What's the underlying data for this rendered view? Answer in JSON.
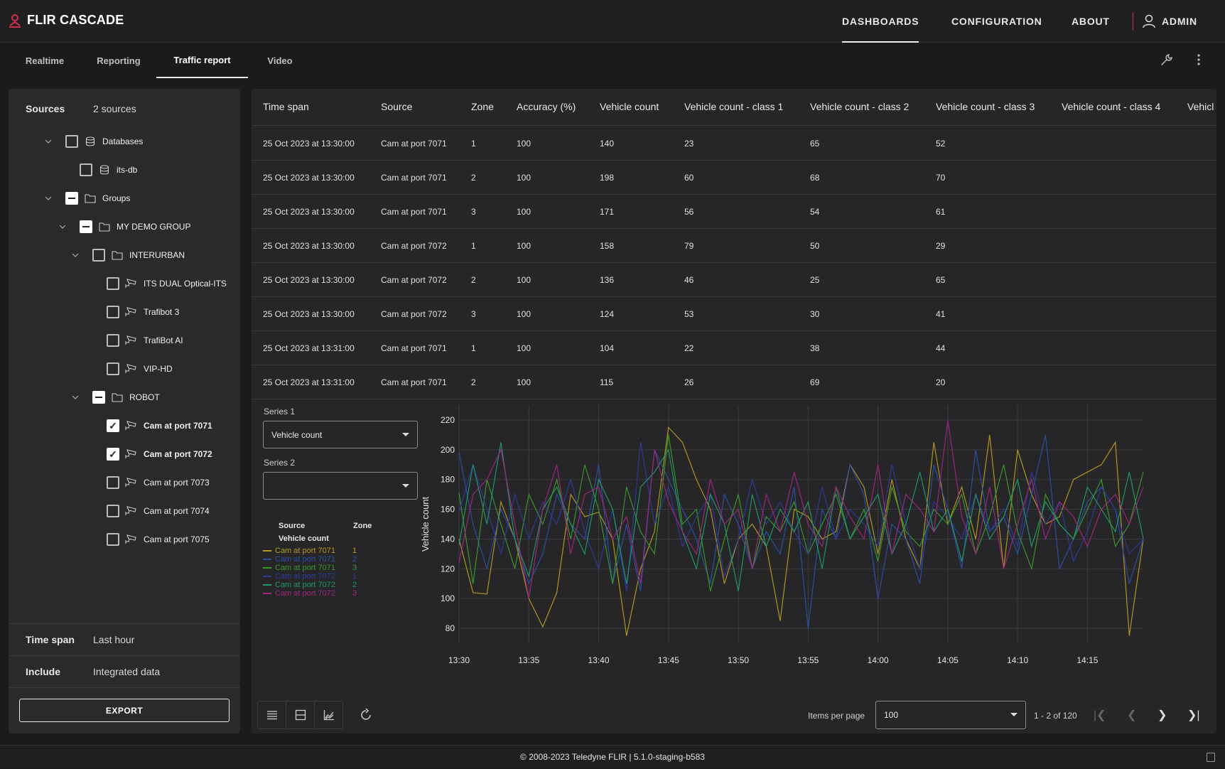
{
  "app": {
    "brand": "FLIR CASCADE"
  },
  "topnav": {
    "items": [
      {
        "label": "DASHBOARDS",
        "active": true
      },
      {
        "label": "CONFIGURATION",
        "active": false
      },
      {
        "label": "ABOUT",
        "active": false
      }
    ],
    "user": "ADMIN"
  },
  "tabs": [
    {
      "label": "Realtime",
      "active": false
    },
    {
      "label": "Reporting",
      "active": false
    },
    {
      "label": "Traffic report",
      "active": true
    },
    {
      "label": "Video",
      "active": false
    }
  ],
  "sidebar": {
    "sources_label": "Sources",
    "sources_value": "2 sources",
    "tree": [
      {
        "label": "Databases",
        "icon": "database-icon",
        "state": "unchecked",
        "expandable": true
      },
      {
        "label": "its-db",
        "icon": "database-icon",
        "state": "unchecked",
        "expandable": false
      },
      {
        "label": "Groups",
        "icon": "folder-icon",
        "state": "partial",
        "expandable": true
      },
      {
        "label": "MY DEMO GROUP",
        "icon": "folder-icon",
        "state": "partial",
        "expandable": true
      },
      {
        "label": "INTERURBAN",
        "icon": "folder-icon",
        "state": "unchecked",
        "expandable": true
      },
      {
        "label": "ITS DUAL Optical-ITS",
        "icon": "camera-icon",
        "state": "unchecked",
        "expandable": false
      },
      {
        "label": "Trafibot 3",
        "icon": "camera-icon",
        "state": "unchecked",
        "expandable": false
      },
      {
        "label": "TrafiBot AI",
        "icon": "camera-icon",
        "state": "unchecked",
        "expandable": false
      },
      {
        "label": "VIP-HD",
        "icon": "camera-icon",
        "state": "unchecked",
        "expandable": false
      },
      {
        "label": "ROBOT",
        "icon": "folder-icon",
        "state": "partial",
        "expandable": true
      },
      {
        "label": "Cam at port 7071",
        "icon": "camera-icon",
        "state": "checked",
        "expandable": false
      },
      {
        "label": "Cam at port 7072",
        "icon": "camera-icon",
        "state": "checked",
        "expandable": false
      },
      {
        "label": "Cam at port 7073",
        "icon": "camera-icon",
        "state": "unchecked",
        "expandable": false
      },
      {
        "label": "Cam at port 7074",
        "icon": "camera-icon",
        "state": "unchecked",
        "expandable": false
      },
      {
        "label": "Cam at port 7075",
        "icon": "camera-icon",
        "state": "unchecked",
        "expandable": false
      }
    ],
    "timespan_label": "Time span",
    "timespan_value": "Last hour",
    "include_label": "Include",
    "include_value": "Integrated data",
    "export_label": "EXPORT"
  },
  "table": {
    "columns": [
      "Time span",
      "Source",
      "Zone",
      "Accuracy (%)",
      "Vehicle count",
      "Vehicle count - class 1",
      "Vehicle count - class 2",
      "Vehicle count - class 3",
      "Vehicle count - class 4",
      "Vehicl"
    ],
    "rows": [
      [
        "25 Oct 2023 at 13:30:00",
        "Cam at port 7071",
        "1",
        "100",
        "140",
        "23",
        "65",
        "52"
      ],
      [
        "25 Oct 2023 at 13:30:00",
        "Cam at port 7071",
        "2",
        "100",
        "198",
        "60",
        "68",
        "70"
      ],
      [
        "25 Oct 2023 at 13:30:00",
        "Cam at port 7071",
        "3",
        "100",
        "171",
        "56",
        "54",
        "61"
      ],
      [
        "25 Oct 2023 at 13:30:00",
        "Cam at port 7072",
        "1",
        "100",
        "158",
        "79",
        "50",
        "29"
      ],
      [
        "25 Oct 2023 at 13:30:00",
        "Cam at port 7072",
        "2",
        "100",
        "136",
        "46",
        "25",
        "65"
      ],
      [
        "25 Oct 2023 at 13:30:00",
        "Cam at port 7072",
        "3",
        "100",
        "124",
        "53",
        "30",
        "41"
      ],
      [
        "25 Oct 2023 at 13:31:00",
        "Cam at port 7071",
        "1",
        "100",
        "104",
        "22",
        "38",
        "44"
      ],
      [
        "25 Oct 2023 at 13:31:00",
        "Cam at port 7071",
        "2",
        "100",
        "115",
        "26",
        "69",
        "20"
      ]
    ]
  },
  "series_panel": {
    "series1_label": "Series 1",
    "series1_value": "Vehicle count",
    "series2_label": "Series 2",
    "series2_value": "",
    "legend_head_source": "Source",
    "legend_head_zone": "Zone",
    "legend_head_metric": "Vehicle count",
    "legend": [
      {
        "source": "Cam at port 7071",
        "zone": "1",
        "color": "#b59a1f"
      },
      {
        "source": "Cam at port 7071",
        "zone": "2",
        "color": "#2b4fa8"
      },
      {
        "source": "Cam at port 7071",
        "zone": "3",
        "color": "#3a9a2a"
      },
      {
        "source": "Cam at port 7072",
        "zone": "1",
        "color": "#2d3a9c"
      },
      {
        "source": "Cam at port 7072",
        "zone": "2",
        "color": "#1f9a6a"
      },
      {
        "source": "Cam at port 7072",
        "zone": "3",
        "color": "#a0257e"
      }
    ]
  },
  "chart_data": {
    "type": "line",
    "ylabel": "Vehicle count",
    "xlabel": "",
    "ylim": [
      70,
      230
    ],
    "yticks": [
      80,
      100,
      120,
      140,
      160,
      180,
      200,
      220
    ],
    "xticks": [
      "13:30",
      "13:35",
      "13:40",
      "13:45",
      "13:50",
      "13:55",
      "14:00",
      "14:05",
      "14:10",
      "14:15"
    ],
    "x_start_minute": 0,
    "x_end_minute": 49,
    "grid": true,
    "series": [
      {
        "name": "Cam at port 7071 1",
        "color": "#b59a1f",
        "values": [
          140,
          104,
          103,
          165,
          140,
          100,
          81,
          104,
          170,
          155,
          158,
          140,
          75,
          120,
          145,
          215,
          205,
          180,
          160,
          110,
          140,
          150,
          135,
          85,
          160,
          155,
          140,
          145,
          190,
          175,
          130,
          180,
          140,
          120,
          205,
          150,
          175,
          140,
          210,
          120,
          200,
          170,
          150,
          155,
          180,
          185,
          190,
          205,
          75,
          140
        ]
      },
      {
        "name": "Cam at port 7071 2",
        "color": "#2b4fa8",
        "values": [
          198,
          150,
          120,
          160,
          140,
          110,
          130,
          170,
          150,
          140,
          190,
          110,
          150,
          105,
          200,
          180,
          160,
          140,
          110,
          170,
          150,
          120,
          145,
          130,
          175,
          80,
          160,
          140,
          190,
          170,
          100,
          150,
          140,
          110,
          190,
          160,
          120,
          200,
          145,
          155,
          130,
          170,
          210,
          120,
          140,
          165,
          175,
          160,
          110,
          140
        ]
      },
      {
        "name": "Cam at port 7071 3",
        "color": "#3a9a2a",
        "values": [
          171,
          110,
          180,
          150,
          120,
          170,
          150,
          180,
          140,
          190,
          160,
          110,
          175,
          145,
          130,
          210,
          150,
          160,
          105,
          140,
          170,
          120,
          155,
          145,
          165,
          130,
          150,
          170,
          140,
          160,
          125,
          175,
          145,
          135,
          160,
          150,
          170,
          130,
          155,
          190,
          145,
          120,
          170,
          150,
          140,
          160,
          180,
          135,
          150,
          185
        ]
      },
      {
        "name": "Cam at port 7072 1",
        "color": "#2d3a9c",
        "values": [
          158,
          190,
          160,
          130,
          170,
          140,
          165,
          150,
          180,
          145,
          120,
          160,
          105,
          205,
          150,
          175,
          135,
          155,
          170,
          115,
          140,
          180,
          150,
          165,
          145,
          130,
          175,
          140,
          160,
          150,
          135,
          190,
          150,
          120,
          165,
          155,
          140,
          170,
          145,
          160,
          135,
          185,
          150,
          165,
          125,
          145,
          175,
          160,
          130,
          140
        ]
      },
      {
        "name": "Cam at port 7072 2",
        "color": "#1f9a6a",
        "values": [
          136,
          190,
          150,
          205,
          140,
          115,
          160,
          175,
          150,
          130,
          180,
          160,
          110,
          175,
          185,
          200,
          145,
          120,
          170,
          150,
          105,
          170,
          135,
          160,
          145,
          165,
          120,
          175,
          140,
          155,
          170,
          130,
          150,
          185,
          145,
          160,
          125,
          170,
          140,
          155,
          180,
          135,
          165,
          150,
          140,
          175,
          160,
          145,
          185,
          140
        ]
      },
      {
        "name": "Cam at port 7072 3",
        "color": "#a0257e",
        "values": [
          124,
          170,
          180,
          200,
          150,
          100,
          160,
          190,
          130,
          170,
          175,
          140,
          155,
          110,
          200,
          165,
          145,
          130,
          180,
          150,
          160,
          120,
          170,
          145,
          185,
          150,
          135,
          175,
          155,
          140,
          190,
          130,
          170,
          160,
          145,
          220,
          155,
          130,
          175,
          120,
          150,
          180,
          140,
          165,
          155,
          135,
          160,
          170,
          150,
          175
        ]
      }
    ]
  },
  "bottom": {
    "items_per_page_label": "Items per page",
    "items_per_page_value": "100",
    "range_text": "1 - 2 of 120"
  },
  "footer": {
    "text": "© 2008-2023 Teledyne FLIR | 5.1.0-staging-b583"
  }
}
